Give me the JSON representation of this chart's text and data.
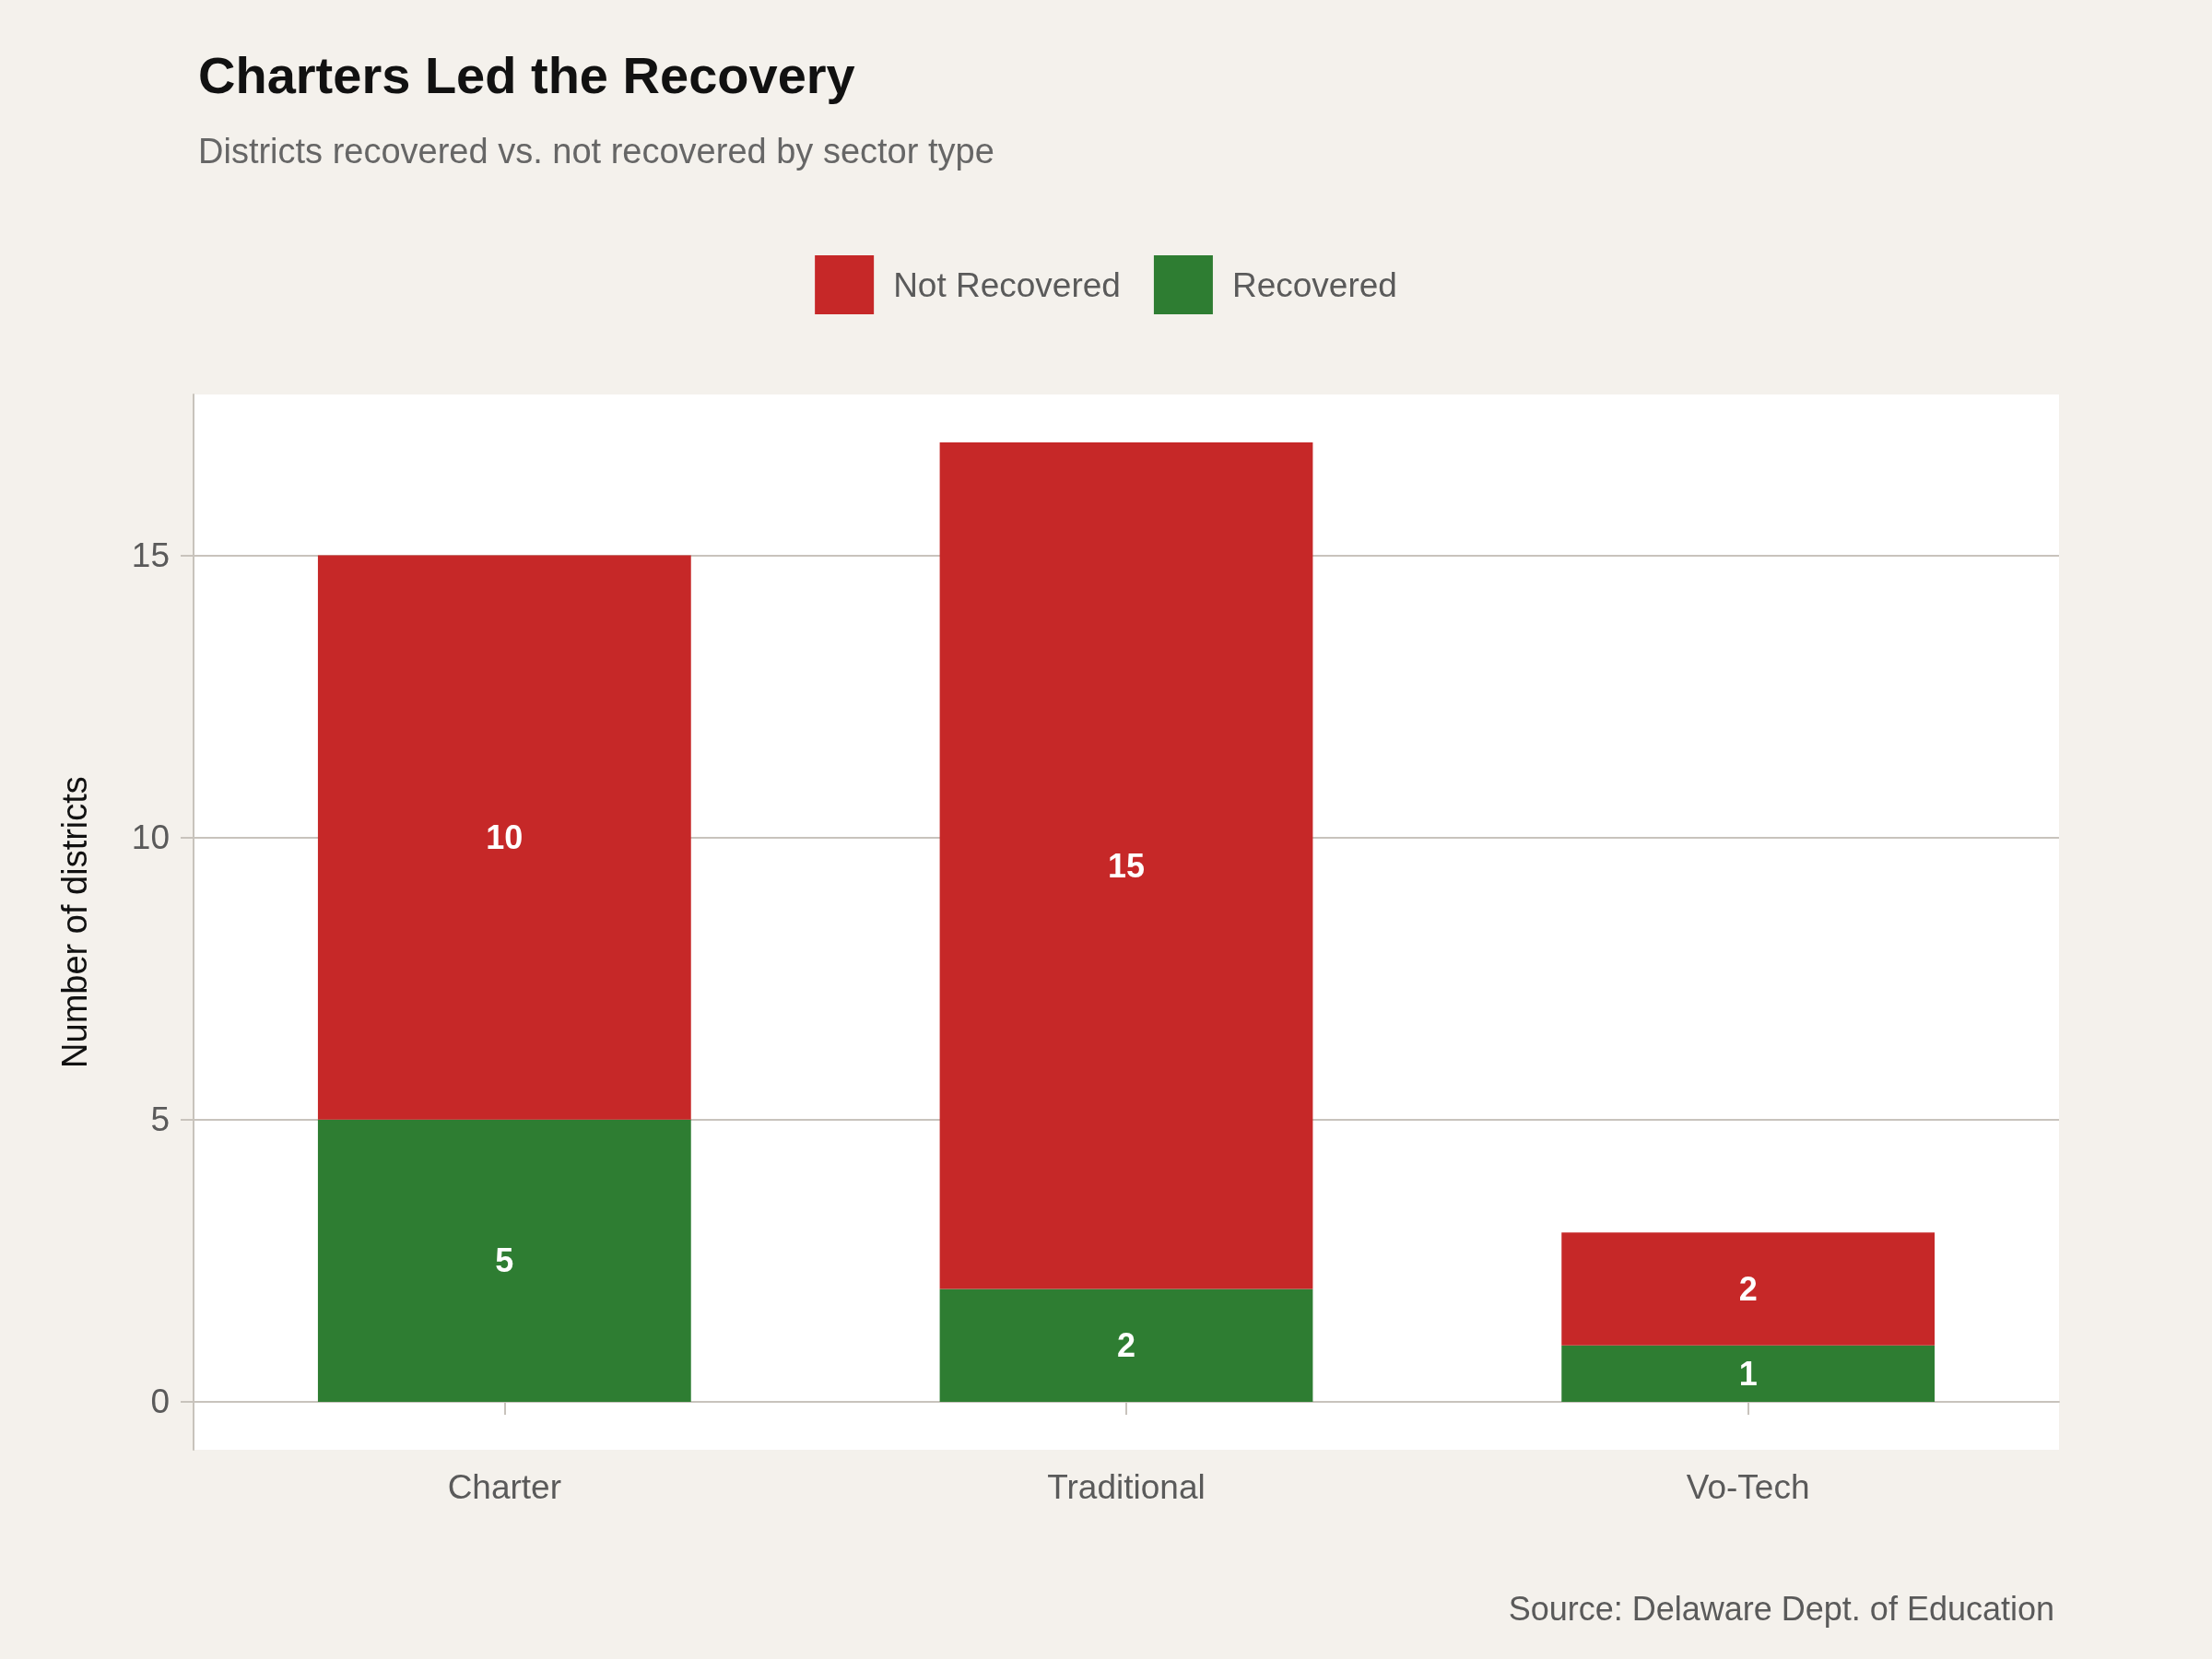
{
  "chart_data": {
    "type": "bar",
    "title": "Charters Led the Recovery",
    "subtitle": "Districts recovered vs. not recovered by sector type",
    "ylabel": "Number of districts",
    "categories": [
      "Charter",
      "Traditional",
      "Vo-Tech"
    ],
    "series": [
      {
        "name": "Recovered",
        "color": "#2e7d32",
        "values": [
          5,
          2,
          1
        ]
      },
      {
        "name": "Not Recovered",
        "color": "#c62828",
        "values": [
          10,
          15,
          2
        ]
      }
    ],
    "stacked": true,
    "data_labels": true,
    "ylim": [
      -0.85,
      17.85
    ],
    "yticks": [
      0,
      5,
      10,
      15
    ],
    "grid": true,
    "legend": "top",
    "annotations": [
      "Source: Delaware Dept. of Education"
    ]
  }
}
